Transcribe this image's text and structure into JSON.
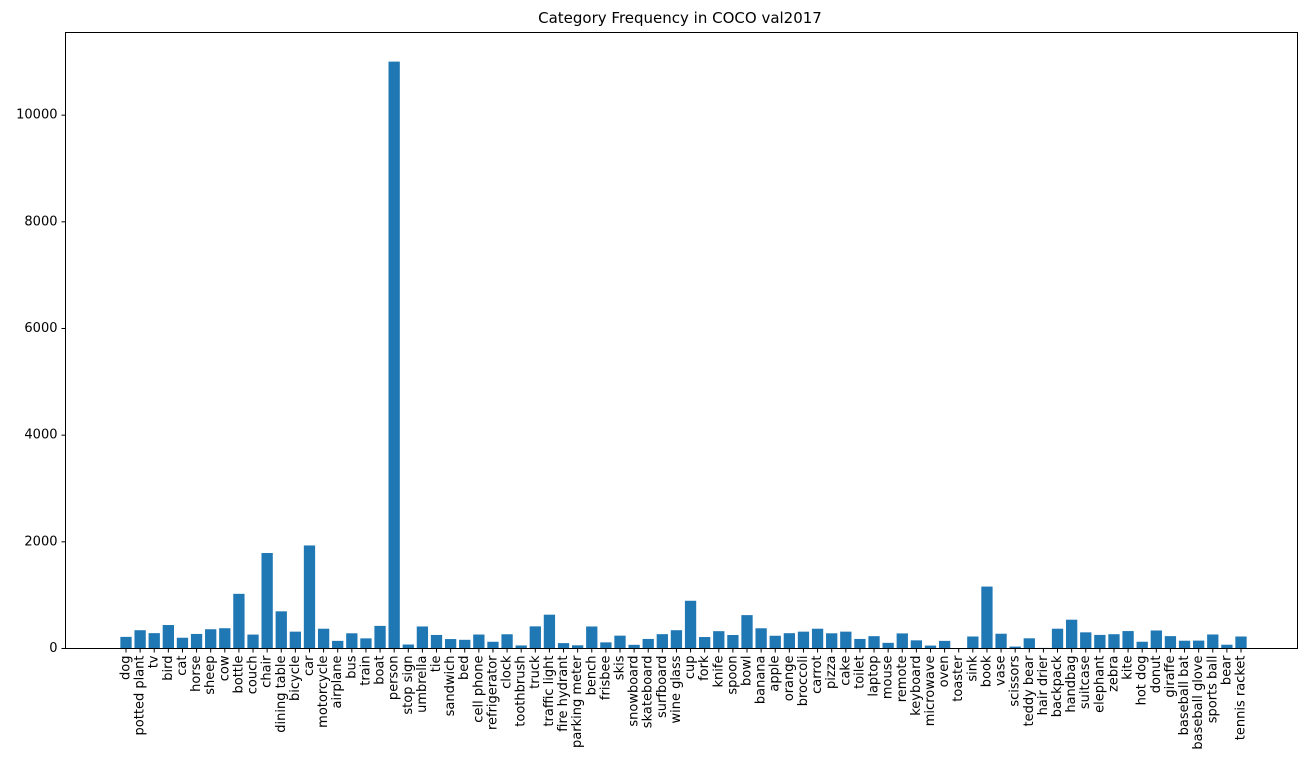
{
  "chart_data": {
    "type": "bar",
    "title": "Category Frequency in COCO val2017",
    "xlabel": "",
    "ylabel": "",
    "ylim": [
      0,
      11550
    ],
    "yticks": [
      0,
      2000,
      4000,
      6000,
      8000,
      10000
    ],
    "grid": false,
    "bar_color": "#1f77b4",
    "categories": [
      "dog",
      "potted plant",
      "tv",
      "bird",
      "cat",
      "horse",
      "sheep",
      "cow",
      "bottle",
      "couch",
      "chair",
      "dining table",
      "bicycle",
      "car",
      "motorcycle",
      "airplane",
      "bus",
      "train",
      "boat",
      "person",
      "stop sign",
      "umbrella",
      "tie",
      "sandwich",
      "bed",
      "cell phone",
      "refrigerator",
      "clock",
      "toothbrush",
      "truck",
      "traffic light",
      "fire hydrant",
      "parking meter",
      "bench",
      "frisbee",
      "skis",
      "snowboard",
      "skateboard",
      "surfboard",
      "wine glass",
      "cup",
      "fork",
      "knife",
      "spoon",
      "bowl",
      "banana",
      "apple",
      "orange",
      "broccoli",
      "carrot",
      "pizza",
      "cake",
      "toilet",
      "laptop",
      "mouse",
      "remote",
      "keyboard",
      "microwave",
      "oven",
      "toaster",
      "sink",
      "book",
      "vase",
      "scissors",
      "teddy bear",
      "hair drier",
      "backpack",
      "handbag",
      "suitcase",
      "elephant",
      "zebra",
      "kite",
      "hot dog",
      "donut",
      "giraffe",
      "baseball bat",
      "baseball glove",
      "sports ball",
      "bear",
      "tennis racket"
    ],
    "values": [
      218,
      343,
      288,
      440,
      202,
      273,
      361,
      380,
      1025,
      261,
      1791,
      697,
      316,
      1932,
      371,
      143,
      285,
      190,
      424,
      11004,
      75,
      413,
      254,
      177,
      163,
      262,
      126,
      267,
      57,
      415,
      634,
      101,
      60,
      413,
      115,
      241,
      69,
      179,
      269,
      343,
      895,
      215,
      325,
      253,
      626,
      379,
      239,
      287,
      316,
      371,
      285,
      316,
      179,
      231,
      106,
      283,
      153,
      55,
      143,
      9,
      225,
      1161,
      277,
      36,
      191,
      11,
      371,
      540,
      303,
      255,
      268,
      327,
      127,
      338,
      232,
      146,
      148,
      263,
      71,
      225
    ]
  }
}
